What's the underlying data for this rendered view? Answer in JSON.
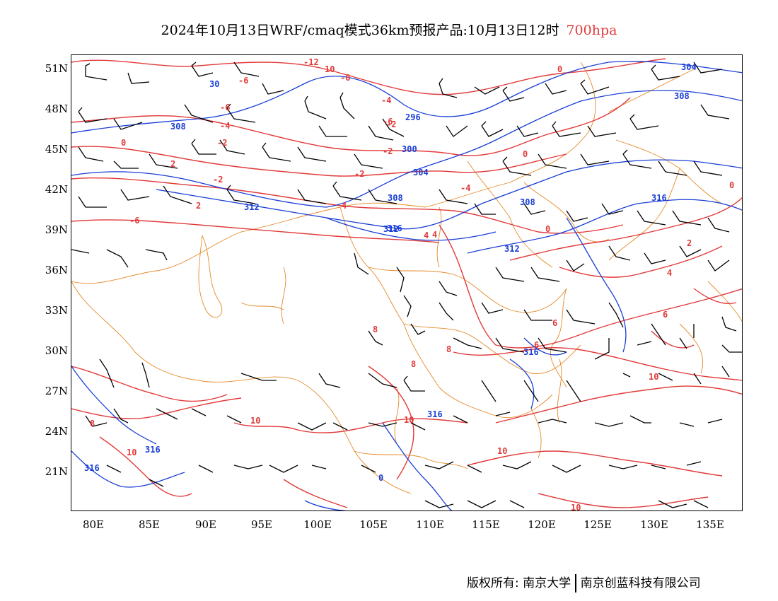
{
  "title": {
    "main": "2024年10月13日WRF/cmaq模式36km预报产品:10月13日12时",
    "level": "700hpa",
    "level_color": "#e23a3a"
  },
  "axes": {
    "lat_labels": [
      "51N",
      "48N",
      "45N",
      "42N",
      "39N",
      "36N",
      "33N",
      "30N",
      "27N",
      "24N",
      "21N"
    ],
    "lon_labels": [
      "80E",
      "85E",
      "90E",
      "95E",
      "100E",
      "105E",
      "110E",
      "115E",
      "120E",
      "125E",
      "130E",
      "135E"
    ]
  },
  "legend_colors": {
    "temperature": "#e23a3a",
    "height": "#1a3fd6",
    "boundary": "#e58a2a",
    "wind": "#000000"
  },
  "contour_labels": {
    "temperature": [
      "-12",
      "10",
      "-8",
      "-6",
      "-4",
      "-6",
      "0",
      "-4",
      "-6",
      "-2",
      "0",
      "-2",
      "-2",
      "0",
      "-2",
      "2",
      "-4",
      "-2",
      "0",
      "2",
      "4",
      "4",
      "-6",
      "4",
      "0",
      "2",
      "4",
      "6",
      "6",
      "8",
      "8",
      "8",
      "10",
      "10",
      "10",
      "10",
      "6",
      "10",
      "8",
      "10"
    ],
    "height": [
      "304",
      "30",
      "296",
      "308",
      "308",
      "300",
      "304",
      "308",
      "308",
      "312",
      "316",
      "312",
      "312",
      "316",
      "316",
      "316",
      "316",
      "316",
      "0"
    ]
  },
  "footer": {
    "left": "版权所有: 南京大学",
    "right": "南京创蓝科技有限公司"
  }
}
